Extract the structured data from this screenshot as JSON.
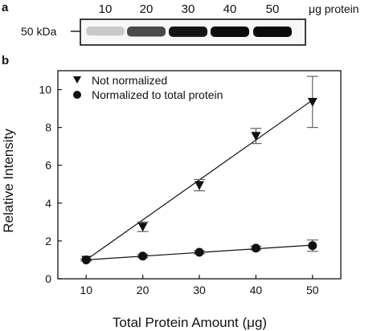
{
  "panels": {
    "a_letter": "a",
    "b_letter": "b"
  },
  "blot": {
    "marker_label": "50 kDa",
    "unit_label": "μg protein",
    "lanes": [
      "10",
      "20",
      "30",
      "40",
      "50"
    ],
    "band_intensity": [
      0.15,
      0.72,
      0.95,
      1.0,
      1.0
    ]
  },
  "chart_data": {
    "type": "scatter",
    "title": "",
    "xlabel": "Total Protein Amount (μg)",
    "ylabel": "Relative Intensity",
    "xlim": [
      5,
      55
    ],
    "ylim": [
      0,
      11
    ],
    "x_ticks": [
      "10",
      "20",
      "30",
      "40",
      "50"
    ],
    "y_ticks": [
      "0",
      "2",
      "4",
      "6",
      "8",
      "10"
    ],
    "grid": false,
    "legend_position": "top-left",
    "series": [
      {
        "name": "Not normalized",
        "marker": "triangle-down",
        "x": [
          10,
          20,
          30,
          40,
          50
        ],
        "y": [
          1.0,
          2.75,
          4.95,
          7.55,
          9.35
        ],
        "err": [
          0.05,
          0.25,
          0.3,
          0.4,
          1.35
        ],
        "fit": [
          [
            10,
            1.0
          ],
          [
            50,
            9.45
          ]
        ]
      },
      {
        "name": "Normalized to total protein",
        "marker": "circle",
        "x": [
          10,
          20,
          30,
          40,
          50
        ],
        "y": [
          1.0,
          1.2,
          1.4,
          1.62,
          1.75
        ],
        "err": [
          0.05,
          0.08,
          0.08,
          0.1,
          0.3
        ],
        "fit": [
          [
            10,
            1.0
          ],
          [
            50,
            1.78
          ]
        ]
      }
    ]
  }
}
